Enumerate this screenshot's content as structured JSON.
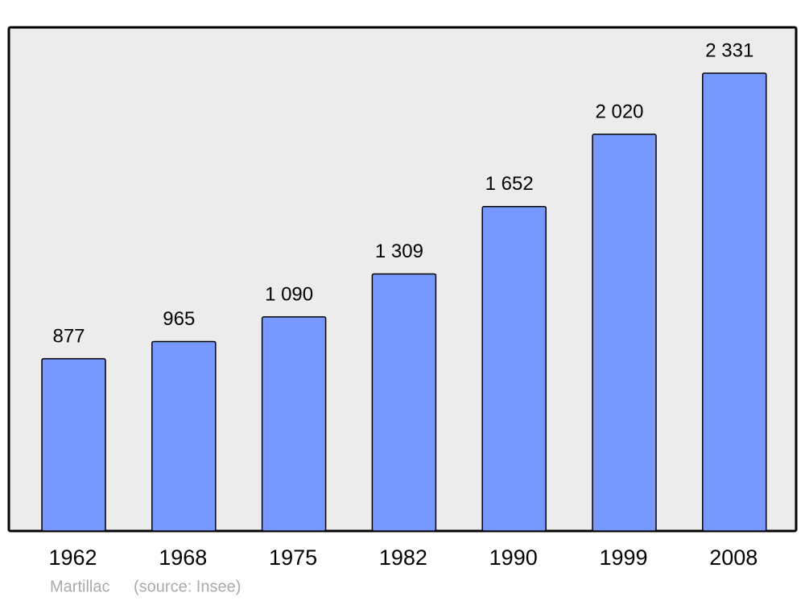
{
  "chart_data": {
    "type": "bar",
    "categories": [
      "1962",
      "1968",
      "1975",
      "1982",
      "1990",
      "1999",
      "2008"
    ],
    "values": [
      877,
      965,
      1090,
      1309,
      1652,
      2020,
      2331
    ],
    "value_labels": [
      "877",
      "965",
      "1 090",
      "1 309",
      "1 652",
      "2 020",
      "2 331"
    ],
    "color": "#7799ff",
    "footer": {
      "place": "Martillac",
      "source": "(source: Insee)"
    }
  }
}
